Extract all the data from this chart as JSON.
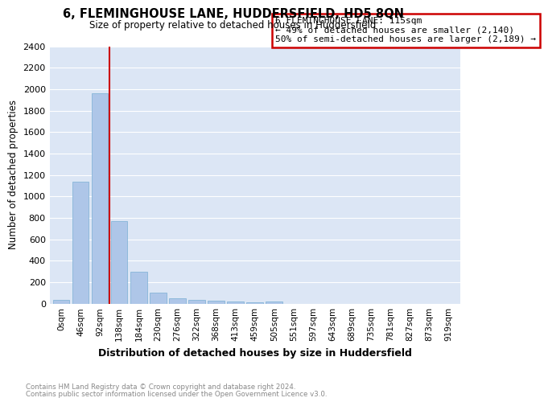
{
  "title": "6, FLEMINGHOUSE LANE, HUDDERSFIELD, HD5 8QN",
  "subtitle": "Size of property relative to detached houses in Huddersfield",
  "xlabel": "Distribution of detached houses by size in Huddersfield",
  "ylabel": "Number of detached properties",
  "footnote1": "Contains HM Land Registry data © Crown copyright and database right 2024.",
  "footnote2": "Contains public sector information licensed under the Open Government Licence v3.0.",
  "bar_labels": [
    "0sqm",
    "46sqm",
    "92sqm",
    "138sqm",
    "184sqm",
    "230sqm",
    "276sqm",
    "322sqm",
    "368sqm",
    "413sqm",
    "459sqm",
    "505sqm",
    "551sqm",
    "597sqm",
    "643sqm",
    "689sqm",
    "735sqm",
    "781sqm",
    "827sqm",
    "873sqm",
    "919sqm"
  ],
  "bar_values": [
    35,
    1140,
    1960,
    770,
    300,
    105,
    47,
    35,
    25,
    18,
    15,
    18,
    0,
    0,
    0,
    0,
    0,
    0,
    0,
    0,
    0
  ],
  "bar_color": "#aec6e8",
  "bar_edge_color": "#7aafd4",
  "background_color": "#dce6f5",
  "grid_color": "#ffffff",
  "red_line_x": 2.48,
  "annotation_text": "6 FLEMINGHOUSE LANE: 115sqm\n← 49% of detached houses are smaller (2,140)\n50% of semi-detached houses are larger (2,189) →",
  "annotation_box_color": "#ffffff",
  "annotation_box_edge_color": "#cc0000",
  "ylim": [
    0,
    2400
  ],
  "yticks": [
    0,
    200,
    400,
    600,
    800,
    1000,
    1200,
    1400,
    1600,
    1800,
    2000,
    2200,
    2400
  ]
}
